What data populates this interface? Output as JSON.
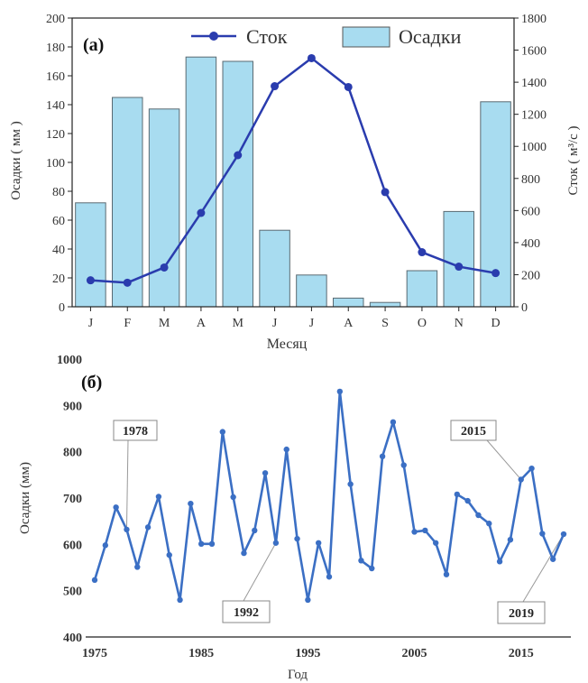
{
  "chart_data": [
    {
      "type": "bar",
      "panel_label": "(a)",
      "categories": [
        "J",
        "F",
        "M",
        "A",
        "M",
        "J",
        "J",
        "A",
        "S",
        "O",
        "N",
        "D"
      ],
      "xlabel": "Месяц",
      "ylabel": "Осадки ( мм )",
      "y2label": "Сток ( м³/с )",
      "ylim": [
        0,
        200
      ],
      "y2lim": [
        0,
        1800
      ],
      "yticks": [
        "0",
        "20",
        "40",
        "60",
        "80",
        "100",
        "120",
        "140",
        "160",
        "180",
        "200"
      ],
      "y2ticks": [
        "0",
        "200",
        "400",
        "600",
        "800",
        "1000",
        "1200",
        "1400",
        "1600",
        "1800"
      ],
      "legend_position": "top",
      "series": [
        {
          "name": "Осадки",
          "kind": "bar",
          "axis": "left",
          "values": [
            72,
            145,
            137,
            173,
            170,
            53,
            22,
            6,
            3,
            25,
            66,
            142
          ],
          "color": "#a8dcf0"
        },
        {
          "name": "Сток",
          "kind": "line",
          "axis": "right",
          "values": [
            165,
            150,
            245,
            585,
            945,
            1375,
            1550,
            1370,
            715,
            340,
            250,
            210
          ],
          "color": "#2a3cae"
        }
      ]
    },
    {
      "type": "line",
      "panel_label": "(б)",
      "xlabel": "Год",
      "ylabel": "Осадки (мм)",
      "ylim": [
        400,
        1000
      ],
      "xlim": [
        1975,
        2019
      ],
      "xticks": [
        "1975",
        "1985",
        "1995",
        "2005",
        "2015"
      ],
      "yticks": [
        "400",
        "500",
        "600",
        "700",
        "800",
        "900",
        "1000"
      ],
      "color": "#3b6fc4",
      "series": [
        {
          "x": [
            1975,
            1976,
            1977,
            1978,
            1979,
            1980,
            1981,
            1982,
            1983,
            1984,
            1985,
            1986,
            1987,
            1988,
            1989,
            1990,
            1991,
            1992,
            1993,
            1994,
            1995,
            1996,
            1997,
            1998,
            1999,
            2000,
            2001,
            2002,
            2003,
            2004,
            2005,
            2006,
            2007,
            2008,
            2009,
            2010,
            2011,
            2012,
            2013,
            2014,
            2015,
            2016,
            2017,
            2018,
            2019
          ],
          "values": [
            523,
            598,
            680,
            632,
            551,
            637,
            703,
            577,
            480,
            688,
            601,
            601,
            843,
            702,
            581,
            630,
            754,
            603,
            805,
            612,
            480,
            603,
            530,
            930,
            730,
            565,
            548,
            790,
            864,
            771,
            627,
            630,
            603,
            535,
            708,
            694,
            663,
            645,
            563,
            610,
            740,
            764,
            623,
            568,
            622
          ]
        }
      ],
      "annotations": [
        {
          "text": "1978",
          "x": 1978
        },
        {
          "text": "1992",
          "x": 1992
        },
        {
          "text": "2015",
          "x": 2015
        },
        {
          "text": "2019",
          "x": 2019
        }
      ]
    }
  ]
}
